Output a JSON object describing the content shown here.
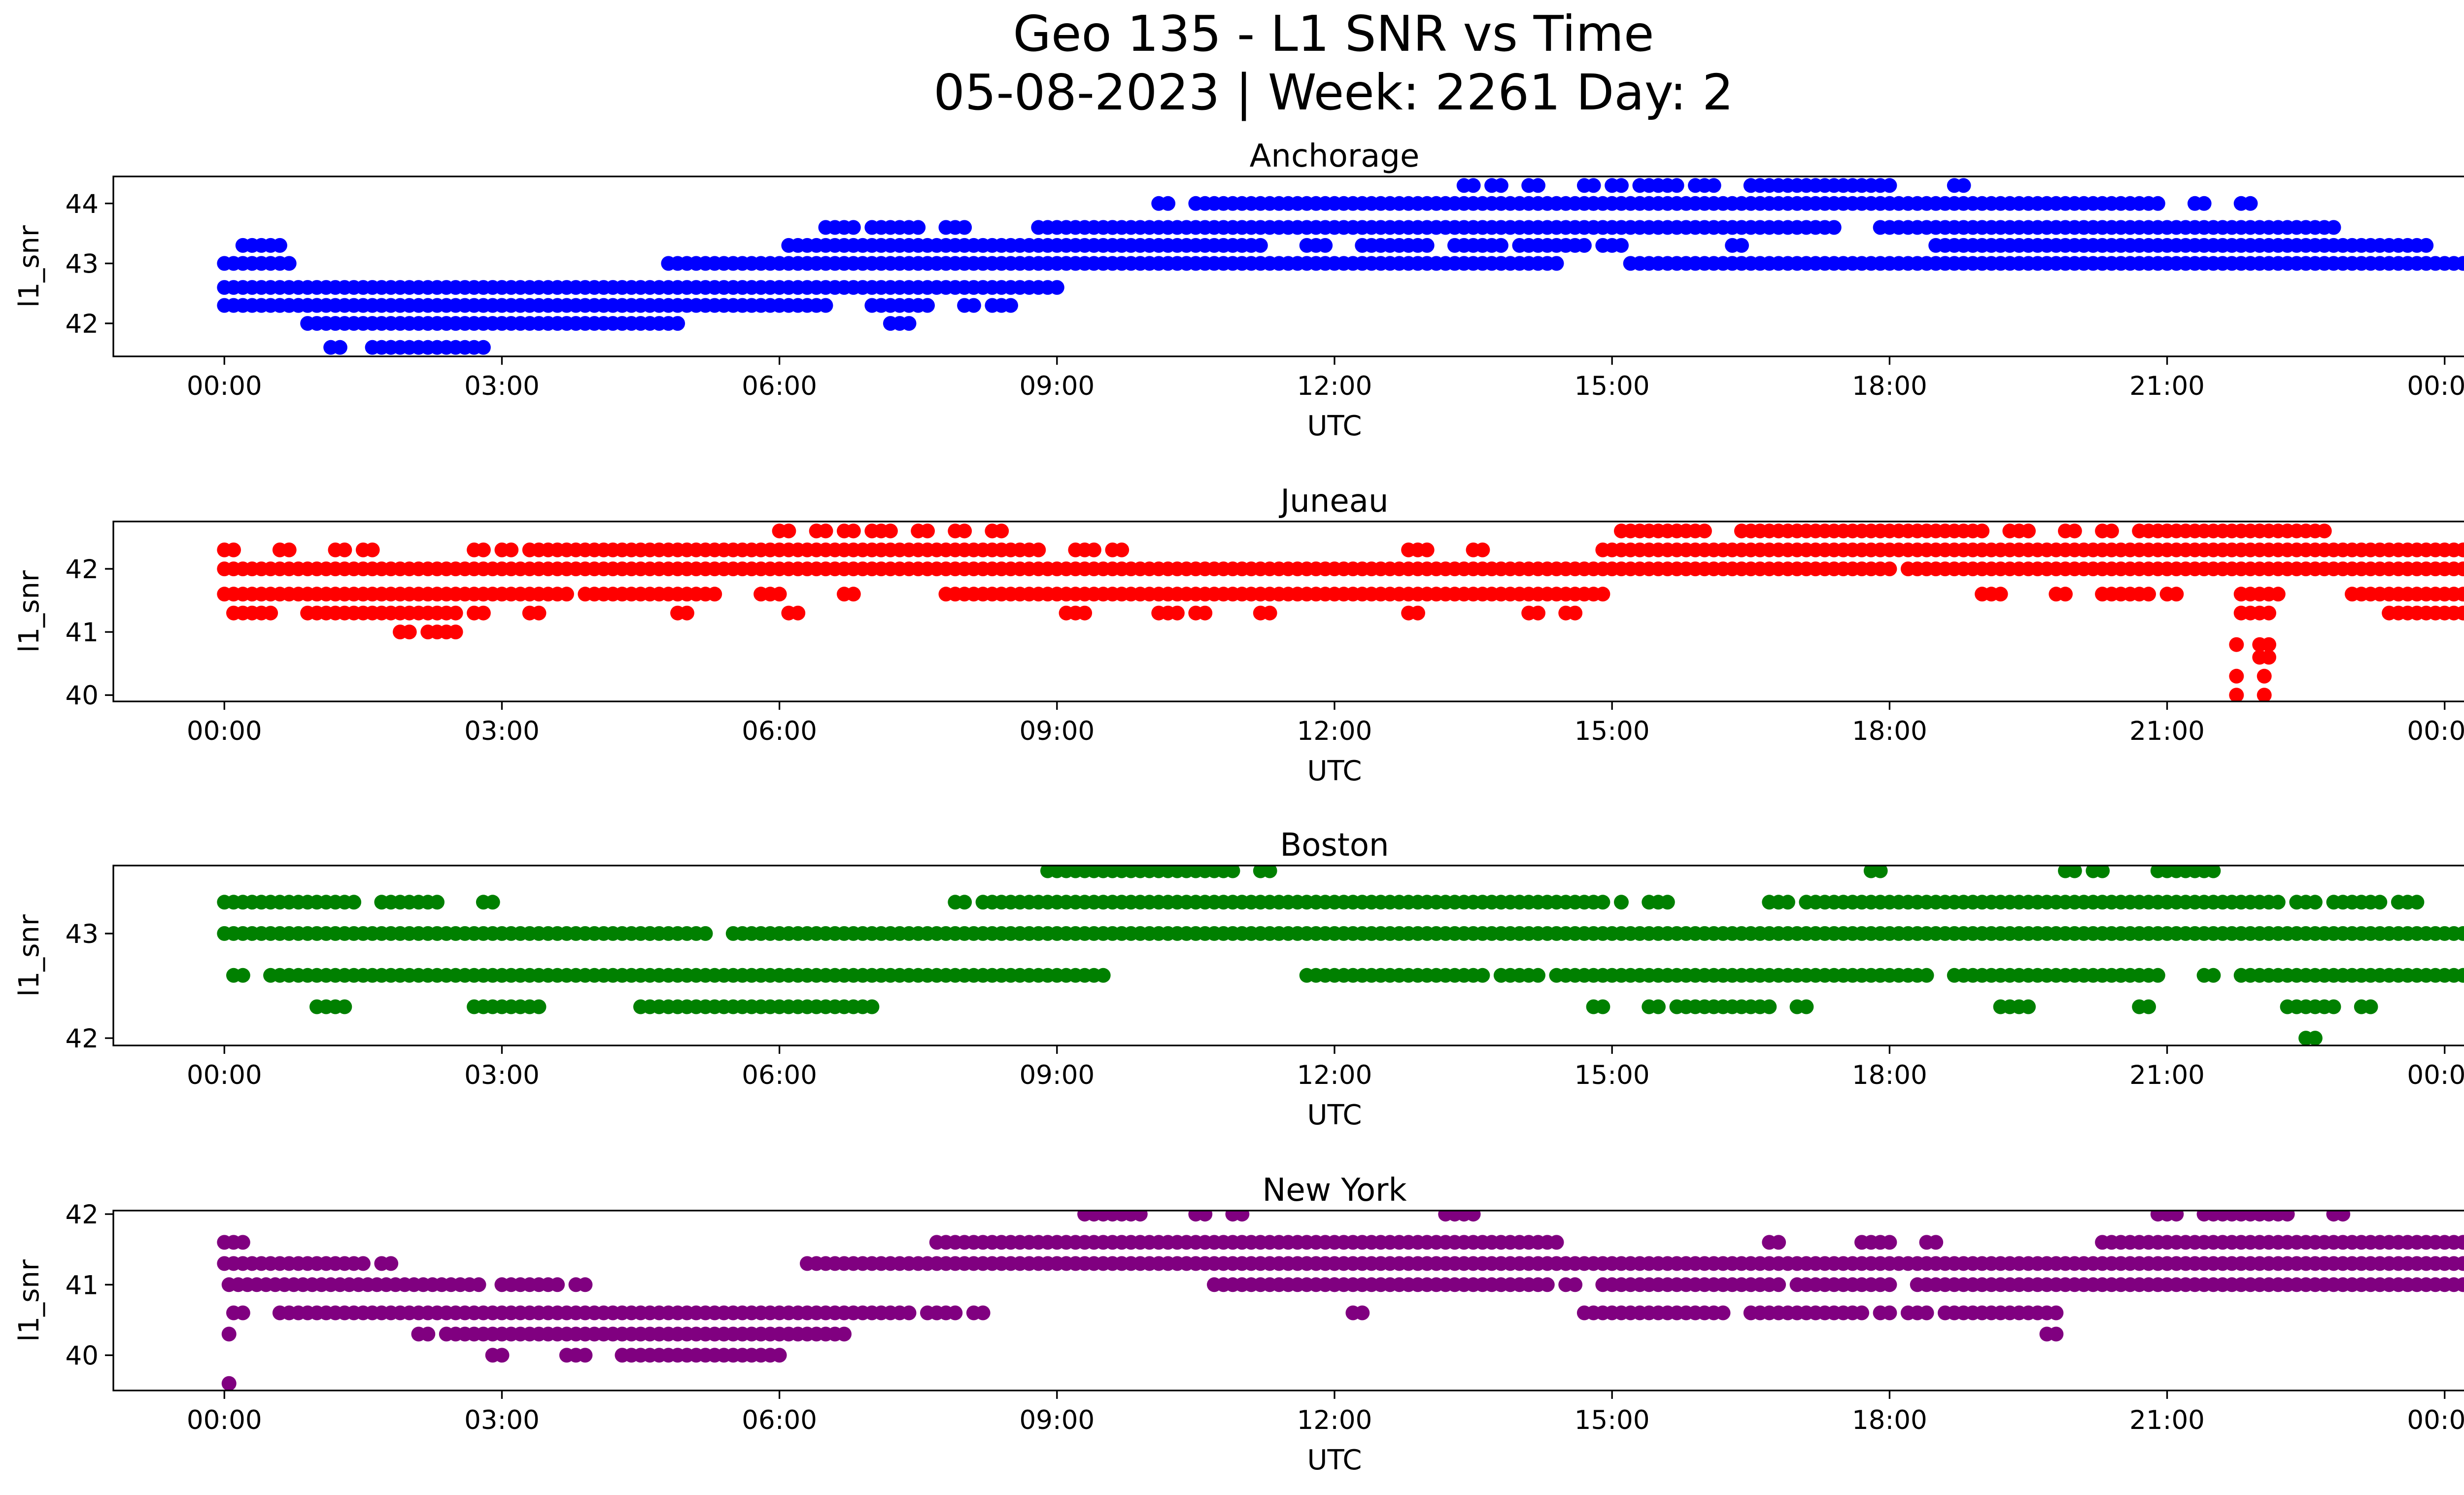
{
  "figure": {
    "title_line1": "Geo 135 - L1 SNR vs Time",
    "title_line2": "05-08-2023 | Week: 2261 Day: 2"
  },
  "chart_data": [
    {
      "type": "scatter",
      "title": "Anchorage",
      "xlabel": "UTC",
      "ylabel": "l1_snr",
      "color": "#0000ff",
      "x_ticks": [
        "00:00",
        "03:00",
        "06:00",
        "09:00",
        "12:00",
        "15:00",
        "18:00",
        "21:00",
        "00:00"
      ],
      "xlim_hours": [
        -1.2,
        25.2
      ],
      "ylim": [
        41.45,
        44.45
      ],
      "yticks": [
        42,
        43,
        44
      ],
      "levels": [
        {
          "value": 41.6,
          "ranges": [
            [
              1.15,
              1.25
            ],
            [
              1.6,
              1.8
            ],
            [
              1.8,
              2.5
            ],
            [
              2.6,
              2.8
            ]
          ]
        },
        {
          "value": 42.0,
          "ranges": [
            [
              0.9,
              4.9
            ],
            [
              7.2,
              7.4
            ]
          ]
        },
        {
          "value": 42.3,
          "ranges": [
            [
              0.0,
              1.0
            ],
            [
              0.6,
              6.5
            ],
            [
              7.0,
              7.6
            ],
            [
              8.0,
              8.1
            ],
            [
              8.3,
              8.5
            ]
          ]
        },
        {
          "value": 42.6,
          "ranges": [
            [
              0.0,
              9.0
            ]
          ]
        },
        {
          "value": 43.0,
          "ranges": [
            [
              0.0,
              0.7
            ],
            [
              4.8,
              14.4
            ],
            [
              15.2,
              25.0
            ]
          ]
        },
        {
          "value": 43.3,
          "ranges": [
            [
              0.2,
              0.6
            ],
            [
              6.1,
              11.2
            ],
            [
              11.7,
              11.9
            ],
            [
              12.3,
              13.0
            ],
            [
              13.3,
              13.8
            ],
            [
              14.0,
              14.7
            ],
            [
              14.9,
              15.1
            ],
            [
              16.3,
              16.4
            ],
            [
              18.5,
              23.8
            ]
          ]
        },
        {
          "value": 43.6,
          "ranges": [
            [
              6.5,
              6.8
            ],
            [
              7.0,
              7.5
            ],
            [
              7.8,
              8.0
            ],
            [
              8.8,
              9.6
            ],
            [
              9.6,
              17.4
            ],
            [
              17.9,
              22.8
            ]
          ]
        },
        {
          "value": 44.0,
          "ranges": [
            [
              10.1,
              10.2
            ],
            [
              10.5,
              14.8
            ],
            [
              14.8,
              20.4
            ],
            [
              20.5,
              20.9
            ],
            [
              21.3,
              21.4
            ],
            [
              21.8,
              21.9
            ]
          ]
        },
        {
          "value": 44.3,
          "ranges": [
            [
              13.4,
              13.5
            ],
            [
              13.7,
              13.8
            ],
            [
              14.1,
              14.2
            ],
            [
              14.7,
              14.8
            ],
            [
              15.0,
              15.1
            ],
            [
              15.3,
              15.7
            ],
            [
              15.9,
              16.1
            ],
            [
              16.5,
              18.0
            ],
            [
              18.7,
              18.8
            ]
          ]
        }
      ]
    },
    {
      "type": "scatter",
      "title": "Juneau",
      "xlabel": "UTC",
      "ylabel": "l1_snr",
      "color": "#ff0000",
      "x_ticks": [
        "00:00",
        "03:00",
        "06:00",
        "09:00",
        "12:00",
        "15:00",
        "18:00",
        "21:00",
        "00:00"
      ],
      "xlim_hours": [
        -1.2,
        25.2
      ],
      "ylim": [
        39.9,
        42.75
      ],
      "yticks": [
        40,
        41,
        42
      ],
      "levels": [
        {
          "value": 40.0,
          "ranges": [
            [
              21.75,
              21.8
            ],
            [
              22.05,
              22.1
            ]
          ]
        },
        {
          "value": 40.3,
          "ranges": [
            [
              21.75,
              21.8
            ],
            [
              22.05,
              22.1
            ]
          ]
        },
        {
          "value": 40.6,
          "ranges": [
            [
              22.0,
              22.1
            ]
          ]
        },
        {
          "value": 40.8,
          "ranges": [
            [
              21.75,
              21.8
            ],
            [
              22.0,
              22.1
            ]
          ]
        },
        {
          "value": 41.0,
          "ranges": [
            [
              1.9,
              2.0
            ],
            [
              2.2,
              2.5
            ]
          ]
        },
        {
          "value": 41.3,
          "ranges": [
            [
              0.1,
              0.5
            ],
            [
              0.9,
              1.1
            ],
            [
              1.2,
              2.5
            ],
            [
              2.7,
              2.8
            ],
            [
              3.3,
              3.4
            ],
            [
              4.9,
              5.0
            ],
            [
              6.1,
              6.2
            ],
            [
              9.1,
              9.3
            ],
            [
              10.1,
              10.3
            ],
            [
              10.5,
              10.6
            ],
            [
              11.2,
              11.3
            ],
            [
              12.8,
              12.9
            ],
            [
              14.1,
              14.2
            ],
            [
              14.5,
              14.6
            ],
            [
              21.8,
              22.1
            ],
            [
              23.4,
              25.0
            ]
          ]
        },
        {
          "value": 41.6,
          "ranges": [
            [
              0.0,
              3.7
            ],
            [
              3.9,
              5.3
            ],
            [
              5.8,
              6.0
            ],
            [
              6.7,
              6.8
            ],
            [
              7.8,
              14.9
            ],
            [
              19.0,
              19.2
            ],
            [
              19.8,
              19.9
            ],
            [
              20.3,
              20.8
            ],
            [
              21.0,
              21.1
            ],
            [
              21.8,
              22.2
            ],
            [
              23.0,
              25.0
            ]
          ]
        },
        {
          "value": 42.0,
          "ranges": [
            [
              0.0,
              18.0
            ],
            [
              18.2,
              25.0
            ]
          ]
        },
        {
          "value": 42.3,
          "ranges": [
            [
              0.0,
              0.1
            ],
            [
              0.6,
              0.7
            ],
            [
              1.2,
              1.3
            ],
            [
              1.5,
              1.6
            ],
            [
              2.7,
              2.8
            ],
            [
              3.0,
              3.1
            ],
            [
              3.3,
              5.1
            ],
            [
              5.2,
              8.8
            ],
            [
              9.2,
              9.4
            ],
            [
              9.6,
              9.7
            ],
            [
              12.8,
              13.0
            ],
            [
              13.5,
              13.6
            ],
            [
              14.9,
              19.0
            ],
            [
              19.0,
              24.8
            ]
          ]
        },
        {
          "value": 42.6,
          "ranges": [
            [
              6.0,
              6.1
            ],
            [
              6.4,
              6.5
            ],
            [
              6.7,
              6.8
            ],
            [
              7.0,
              7.2
            ],
            [
              7.5,
              7.6
            ],
            [
              7.9,
              8.0
            ],
            [
              8.3,
              8.4
            ],
            [
              15.1,
              16.0
            ],
            [
              16.4,
              19.0
            ],
            [
              19.3,
              19.5
            ],
            [
              19.9,
              20.0
            ],
            [
              20.3,
              20.4
            ],
            [
              20.7,
              22.0
            ],
            [
              22.0,
              22.7
            ]
          ]
        }
      ]
    },
    {
      "type": "scatter",
      "title": "Boston",
      "xlabel": "UTC",
      "ylabel": "l1_snr",
      "color": "#008000",
      "x_ticks": [
        "00:00",
        "03:00",
        "06:00",
        "09:00",
        "12:00",
        "15:00",
        "18:00",
        "21:00",
        "00:00"
      ],
      "xlim_hours": [
        -1.2,
        25.2
      ],
      "ylim": [
        41.93,
        43.65
      ],
      "yticks": [
        42,
        43
      ],
      "levels": [
        {
          "value": 42.0,
          "ranges": [
            [
              22.5,
              22.6
            ]
          ]
        },
        {
          "value": 42.3,
          "ranges": [
            [
              1.0,
              1.3
            ],
            [
              2.7,
              3.4
            ],
            [
              4.5,
              7.0
            ],
            [
              14.8,
              14.9
            ],
            [
              15.4,
              15.5
            ],
            [
              15.7,
              16.7
            ],
            [
              17.0,
              17.1
            ],
            [
              19.2,
              19.5
            ],
            [
              20.7,
              20.8
            ],
            [
              22.3,
              22.8
            ],
            [
              23.1,
              23.2
            ]
          ]
        },
        {
          "value": 42.6,
          "ranges": [
            [
              0.1,
              0.2
            ],
            [
              0.5,
              9.3
            ],
            [
              9.4,
              9.5
            ],
            [
              11.7,
              13.6
            ],
            [
              13.8,
              14.2
            ],
            [
              14.4,
              15.6
            ],
            [
              15.6,
              17.5
            ],
            [
              17.6,
              18.4
            ],
            [
              18.7,
              20.5
            ],
            [
              20.5,
              20.9
            ],
            [
              21.4,
              21.5
            ],
            [
              21.8,
              25.0
            ]
          ]
        },
        {
          "value": 43.0,
          "ranges": [
            [
              0.0,
              4.6
            ],
            [
              4.6,
              5.2
            ],
            [
              5.5,
              6.2
            ],
            [
              6.3,
              25.0
            ]
          ]
        },
        {
          "value": 43.3,
          "ranges": [
            [
              0.0,
              1.2
            ],
            [
              1.3,
              1.4
            ],
            [
              1.7,
              2.3
            ],
            [
              2.8,
              2.9
            ],
            [
              7.9,
              8.0
            ],
            [
              8.2,
              11.8
            ],
            [
              11.8,
              14.0
            ],
            [
              14.0,
              14.9
            ],
            [
              15.1,
              15.1
            ],
            [
              15.4,
              15.6
            ],
            [
              16.7,
              16.9
            ],
            [
              17.1,
              17.2
            ],
            [
              17.3,
              22.2
            ],
            [
              22.4,
              22.6
            ],
            [
              22.8,
              23.3
            ],
            [
              23.5,
              23.7
            ]
          ]
        },
        {
          "value": 43.6,
          "ranges": [
            [
              8.9,
              10.9
            ],
            [
              11.2,
              11.3
            ],
            [
              17.8,
              17.9
            ],
            [
              19.9,
              20.0
            ],
            [
              20.2,
              20.3
            ],
            [
              20.9,
              21.5
            ]
          ]
        }
      ]
    },
    {
      "type": "scatter",
      "title": "New York",
      "xlabel": "UTC",
      "ylabel": "l1_snr",
      "color": "#800080",
      "x_ticks": [
        "00:00",
        "03:00",
        "06:00",
        "09:00",
        "12:00",
        "15:00",
        "18:00",
        "21:00",
        "00:00"
      ],
      "xlim_hours": [
        -1.2,
        25.2
      ],
      "ylim": [
        39.5,
        42.05
      ],
      "yticks": [
        40,
        41,
        42
      ],
      "levels": [
        {
          "value": 39.6,
          "ranges": [
            [
              0.05,
              0.1
            ]
          ]
        },
        {
          "value": 40.0,
          "ranges": [
            [
              2.9,
              3.0
            ],
            [
              3.7,
              3.9
            ],
            [
              4.3,
              6.0
            ]
          ]
        },
        {
          "value": 40.3,
          "ranges": [
            [
              0.05,
              0.1
            ],
            [
              2.1,
              2.2
            ],
            [
              2.4,
              6.7
            ],
            [
              19.7,
              19.8
            ]
          ]
        },
        {
          "value": 40.6,
          "ranges": [
            [
              0.1,
              0.2
            ],
            [
              0.6,
              7.4
            ],
            [
              7.6,
              7.9
            ],
            [
              8.1,
              8.2
            ],
            [
              12.2,
              12.3
            ],
            [
              14.7,
              16.2
            ],
            [
              16.5,
              17.7
            ],
            [
              17.9,
              18.0
            ],
            [
              18.2,
              18.4
            ],
            [
              18.6,
              19.8
            ]
          ]
        },
        {
          "value": 41.0,
          "ranges": [
            [
              0.05,
              2.8
            ],
            [
              3.0,
              3.6
            ],
            [
              3.8,
              3.9
            ],
            [
              10.7,
              12.0
            ],
            [
              12.0,
              14.3
            ],
            [
              14.5,
              14.6
            ],
            [
              14.9,
              16.8
            ],
            [
              17.0,
              18.0
            ],
            [
              18.3,
              25.0
            ]
          ]
        },
        {
          "value": 41.3,
          "ranges": [
            [
              0.0,
              1.5
            ],
            [
              1.7,
              1.8
            ],
            [
              6.3,
              25.0
            ]
          ]
        },
        {
          "value": 41.6,
          "ranges": [
            [
              0.0,
              0.2
            ],
            [
              7.7,
              14.4
            ],
            [
              16.7,
              16.8
            ],
            [
              17.7,
              18.0
            ],
            [
              18.4,
              18.5
            ],
            [
              20.3,
              25.0
            ]
          ]
        },
        {
          "value": 42.0,
          "ranges": [
            [
              9.3,
              9.9
            ],
            [
              10.5,
              10.6
            ],
            [
              10.9,
              11.0
            ],
            [
              13.2,
              13.5
            ],
            [
              20.9,
              21.1
            ],
            [
              21.4,
              21.9
            ],
            [
              22.0,
              22.3
            ],
            [
              22.8,
              22.9
            ]
          ]
        }
      ]
    }
  ]
}
